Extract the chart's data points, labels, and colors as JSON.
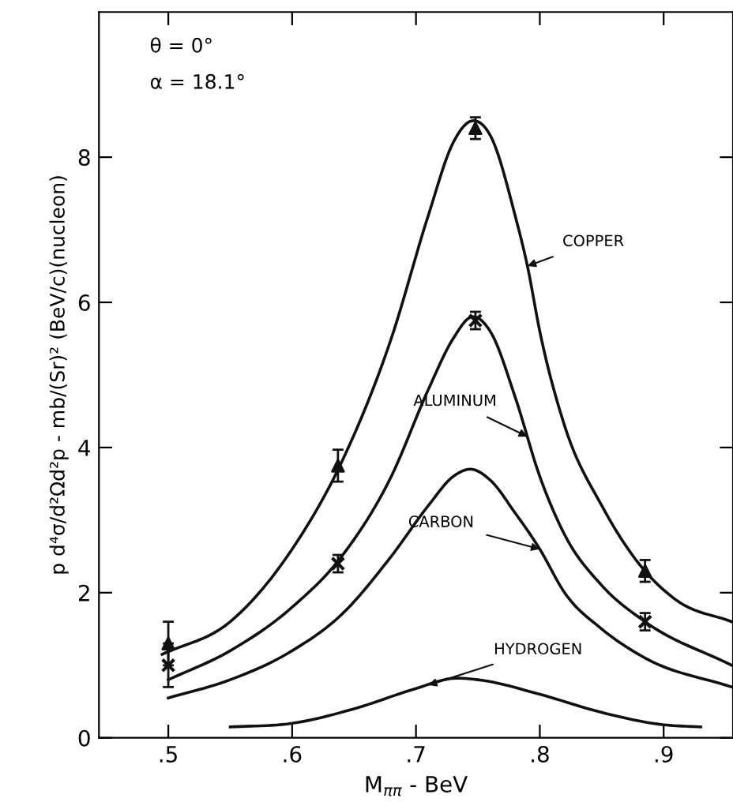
{
  "chart_data": {
    "type": "line",
    "xlabel": "M$_{ππ}$ - BeV",
    "ylabel": "p d⁴σ/d²Ωd²p - mb/(Sr)² (BeV/c)(nucleon)",
    "annotations": [
      "θ = 0°",
      "α = 18.1°"
    ],
    "xlim": [
      0.444,
      0.956
    ],
    "ylim": [
      0,
      10
    ],
    "xticks": [
      {
        "value": 0.5,
        "label": ".5"
      },
      {
        "value": 0.6,
        "label": ".6"
      },
      {
        "value": 0.7,
        "label": ".7"
      },
      {
        "value": 0.8,
        "label": ".8"
      },
      {
        "value": 0.9,
        "label": ".9"
      }
    ],
    "yticks": [
      0,
      2,
      4,
      6,
      8
    ],
    "grid": false,
    "legend": false,
    "series": [
      {
        "name": "COPPER",
        "color": "#111111",
        "marker": "none",
        "x": [
          0.495,
          0.55,
          0.6,
          0.64,
          0.68,
          0.71,
          0.73,
          0.745,
          0.76,
          0.78,
          0.79,
          0.8,
          0.82,
          0.85,
          0.88,
          0.91,
          0.955
        ],
        "values": [
          1.15,
          1.6,
          2.6,
          3.8,
          5.5,
          7.2,
          8.2,
          8.5,
          8.3,
          7.2,
          6.5,
          5.6,
          4.3,
          3.2,
          2.4,
          1.9,
          1.6
        ]
      },
      {
        "name": "ALUMINUM",
        "color": "#111111",
        "marker": "none",
        "x": [
          0.5,
          0.55,
          0.6,
          0.64,
          0.68,
          0.71,
          0.73,
          0.745,
          0.76,
          0.78,
          0.8,
          0.82,
          0.85,
          0.885,
          0.955
        ],
        "values": [
          0.8,
          1.2,
          1.8,
          2.5,
          3.6,
          4.8,
          5.5,
          5.8,
          5.6,
          4.7,
          3.6,
          2.8,
          2.1,
          1.6,
          1.0
        ]
      },
      {
        "name": "CARBON",
        "color": "#111111",
        "marker": "none",
        "x": [
          0.5,
          0.55,
          0.6,
          0.64,
          0.68,
          0.71,
          0.73,
          0.745,
          0.76,
          0.78,
          0.8,
          0.82,
          0.85,
          0.885,
          0.955
        ],
        "values": [
          0.55,
          0.8,
          1.2,
          1.7,
          2.5,
          3.2,
          3.6,
          3.7,
          3.55,
          3.1,
          2.6,
          2.0,
          1.5,
          1.1,
          0.7
        ]
      },
      {
        "name": "HYDROGEN",
        "color": "#111111",
        "marker": "none",
        "x": [
          0.55,
          0.6,
          0.65,
          0.7,
          0.73,
          0.75,
          0.8,
          0.85,
          0.9,
          0.93
        ],
        "values": [
          0.15,
          0.2,
          0.4,
          0.68,
          0.82,
          0.8,
          0.6,
          0.35,
          0.18,
          0.15
        ]
      },
      {
        "type": "scatter",
        "color": "#111111",
        "marker": "triangle",
        "x": [
          0.5,
          0.637,
          0.748,
          0.885
        ],
        "values": [
          1.3,
          3.75,
          8.4,
          2.3
        ],
        "errors": [
          0.3,
          0.22,
          0.15,
          0.15
        ]
      },
      {
        "type": "scatter",
        "color": "#111111",
        "marker": "cross",
        "x": [
          0.5,
          0.637,
          0.748,
          0.885
        ],
        "values": [
          1.0,
          2.4,
          5.75,
          1.6
        ],
        "errors": [
          0.3,
          0.12,
          0.12,
          0.12
        ]
      }
    ]
  }
}
